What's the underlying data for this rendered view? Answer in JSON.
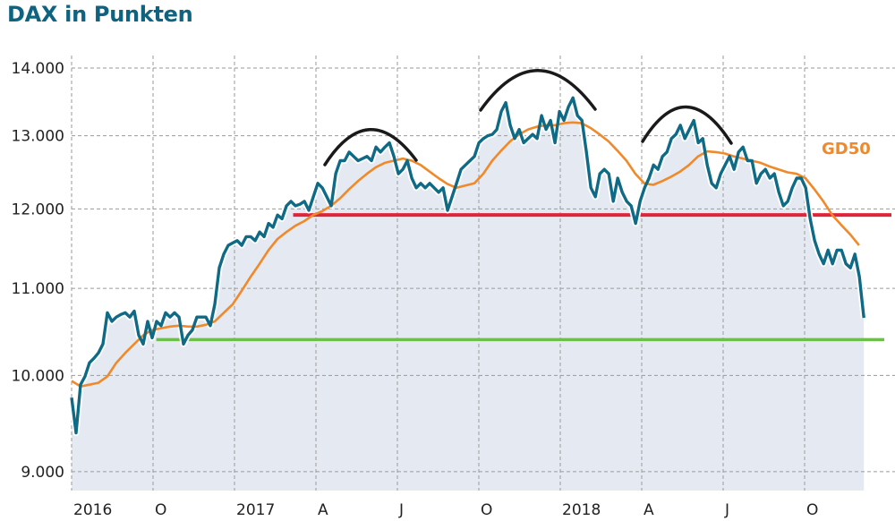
{
  "chart_data": {
    "type": "line",
    "title": "DAX in Punkten",
    "xlabel": "",
    "ylabel": "",
    "y_scale": "log",
    "ylim": [
      8850,
      14350
    ],
    "xlim": [
      2016.5,
      2018.95
    ],
    "grid": true,
    "y_ticks": [
      {
        "value": 9000,
        "label": "9.000"
      },
      {
        "value": 10000,
        "label": "10.000"
      },
      {
        "value": 11000,
        "label": "11.000"
      },
      {
        "value": 12000,
        "label": "12.000"
      },
      {
        "value": 13000,
        "label": "13.000"
      },
      {
        "value": 14000,
        "label": "14.000"
      }
    ],
    "x_ticks": [
      {
        "value": 2016.5,
        "label": "2016"
      },
      {
        "value": 2016.75,
        "label": "O"
      },
      {
        "value": 2017.0,
        "label": "2017"
      },
      {
        "value": 2017.25,
        "label": "A"
      },
      {
        "value": 2017.5,
        "label": "J"
      },
      {
        "value": 2017.75,
        "label": "O"
      },
      {
        "value": 2018.0,
        "label": "2018"
      },
      {
        "value": 2018.25,
        "label": "A"
      },
      {
        "value": 2018.5,
        "label": "J"
      },
      {
        "value": 2018.75,
        "label": "O"
      }
    ],
    "series": [
      {
        "name": "DAX",
        "color": "#0f6a86",
        "x_start": 2016.5,
        "x_step": 0.01374,
        "values": [
          9760,
          9390,
          9900,
          9990,
          10140,
          10190,
          10250,
          10350,
          10710,
          10610,
          10660,
          10690,
          10710,
          10660,
          10730,
          10450,
          10350,
          10610,
          10420,
          10610,
          10560,
          10710,
          10660,
          10710,
          10660,
          10350,
          10450,
          10510,
          10660,
          10660,
          10660,
          10560,
          10810,
          11250,
          11420,
          11530,
          11560,
          11590,
          11530,
          11640,
          11640,
          11590,
          11700,
          11640,
          11810,
          11760,
          11920,
          11870,
          12040,
          12100,
          12040,
          12060,
          12100,
          11980,
          12160,
          12340,
          12280,
          12160,
          12040,
          12470,
          12650,
          12650,
          12770,
          12710,
          12650,
          12680,
          12710,
          12650,
          12840,
          12770,
          12840,
          12900,
          12710,
          12470,
          12530,
          12650,
          12410,
          12280,
          12340,
          12280,
          12340,
          12280,
          12220,
          12280,
          11980,
          12160,
          12340,
          12530,
          12590,
          12650,
          12710,
          12900,
          12960,
          13000,
          13020,
          13090,
          13350,
          13480,
          13150,
          12960,
          13090,
          12900,
          12960,
          13020,
          12960,
          13290,
          13090,
          13220,
          12900,
          13350,
          13220,
          13420,
          13550,
          13290,
          13220,
          12770,
          12280,
          12160,
          12470,
          12530,
          12470,
          12100,
          12410,
          12220,
          12100,
          12040,
          11810,
          12100,
          12280,
          12410,
          12590,
          12530,
          12710,
          12770,
          12960,
          13020,
          13150,
          12960,
          13090,
          13220,
          12900,
          12960,
          12590,
          12340,
          12280,
          12470,
          12590,
          12710,
          12530,
          12770,
          12840,
          12650,
          12650,
          12340,
          12470,
          12530,
          12410,
          12470,
          12220,
          12040,
          12100,
          12280,
          12410,
          12410,
          12280,
          11870,
          11590,
          11420,
          11300,
          11470,
          11300,
          11470,
          11470,
          11300,
          11250,
          11420,
          11140,
          10650
        ]
      },
      {
        "name": "GD50",
        "label": "GD50",
        "color": "#f0892a",
        "x_start": 2016.5,
        "x_step": 0.02747,
        "values": [
          9940,
          9880,
          9900,
          9920,
          9990,
          10140,
          10250,
          10350,
          10450,
          10510,
          10530,
          10550,
          10560,
          10550,
          10550,
          10570,
          10610,
          10710,
          10810,
          10970,
          11140,
          11300,
          11470,
          11610,
          11700,
          11780,
          11840,
          11920,
          11970,
          12040,
          12140,
          12260,
          12370,
          12470,
          12560,
          12620,
          12650,
          12680,
          12650,
          12590,
          12500,
          12410,
          12330,
          12280,
          12310,
          12340,
          12470,
          12650,
          12790,
          12920,
          13020,
          13090,
          13130,
          13150,
          13150,
          13180,
          13190,
          13180,
          13110,
          13020,
          12920,
          12790,
          12650,
          12470,
          12340,
          12320,
          12370,
          12430,
          12500,
          12590,
          12710,
          12780,
          12770,
          12750,
          12710,
          12680,
          12650,
          12620,
          12570,
          12530,
          12490,
          12470,
          12410,
          12260,
          12100,
          11920,
          11790,
          11670,
          11530
        ]
      }
    ],
    "reference_lines": [
      {
        "name": "resistance",
        "value": 11920,
        "x_from": 2017.18,
        "color": "#e0243a"
      },
      {
        "name": "support",
        "value": 10400,
        "x_from": 2016.76,
        "color": "#6cbf4a"
      }
    ],
    "annotations": [
      "arc-top-1",
      "arc-top-2",
      "arc-top-3"
    ]
  }
}
